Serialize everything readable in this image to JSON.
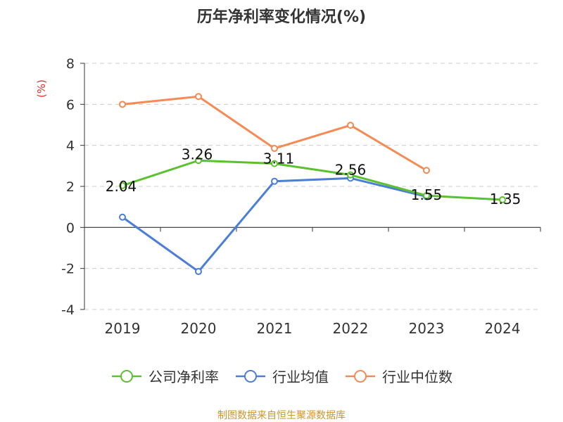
{
  "title": "历年净利率变化情况(%)",
  "source": "制图数据来自恒生聚源数据库",
  "chart_data": {
    "type": "line",
    "title": "历年净利率变化情况(%)",
    "ylabel": "(%)",
    "xlabel": "",
    "ylim": [
      -4,
      8
    ],
    "yticks": [
      8,
      6,
      4,
      2,
      0,
      -2,
      -4
    ],
    "categories": [
      "2019",
      "2020",
      "2021",
      "2022",
      "2023",
      "2024"
    ],
    "grid": "horizontal-dashed",
    "legend_position": "bottom",
    "series": [
      {
        "name": "公司净利率",
        "color": "#5cc12e",
        "values": [
          2.04,
          3.26,
          3.11,
          2.56,
          1.55,
          1.35
        ],
        "labels": [
          "2.04",
          "3.26",
          "3.11",
          "2.56",
          "1.55",
          "1.35"
        ]
      },
      {
        "name": "行业均值",
        "color": "#4a7ed8",
        "values": [
          0.5,
          -2.15,
          2.25,
          2.4,
          1.5,
          null
        ]
      },
      {
        "name": "行业中位数",
        "color": "#f58a54",
        "values": [
          6.0,
          6.38,
          3.85,
          4.98,
          2.78,
          null
        ]
      }
    ]
  }
}
